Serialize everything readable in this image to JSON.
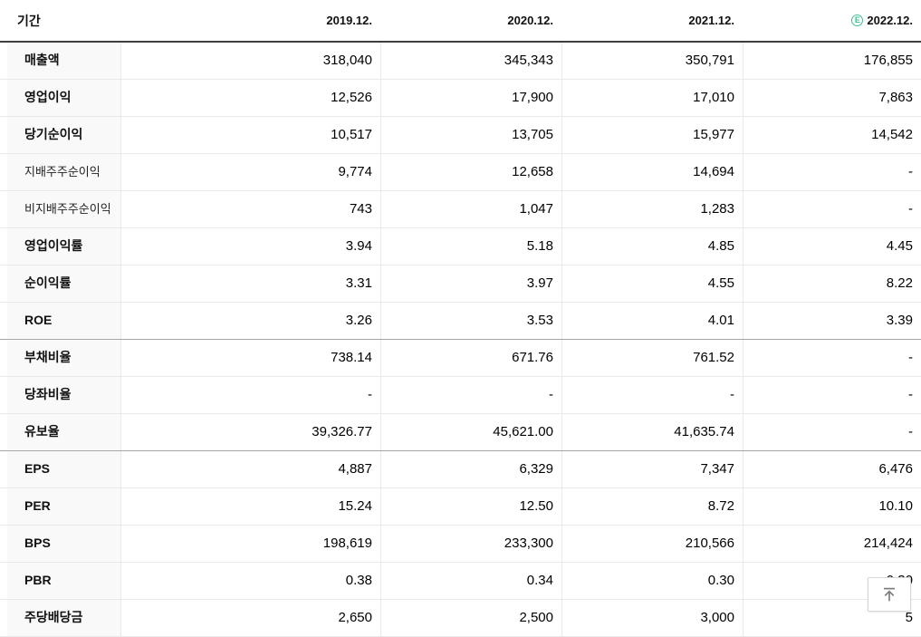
{
  "table": {
    "header": {
      "period_label": "기간",
      "columns": [
        "2019.12.",
        "2020.12.",
        "2021.12.",
        "2022.12."
      ],
      "estimate_column_index": 3,
      "estimate_letter": "E",
      "estimate_color": "#3fbf8f"
    },
    "rows": [
      {
        "label": "매출액",
        "bold": true,
        "group_end": false,
        "values": [
          "318,040",
          "345,343",
          "350,791",
          "176,855"
        ]
      },
      {
        "label": "영업이익",
        "bold": true,
        "group_end": false,
        "values": [
          "12,526",
          "17,900",
          "17,010",
          "7,863"
        ]
      },
      {
        "label": "당기순이익",
        "bold": true,
        "group_end": false,
        "values": [
          "10,517",
          "13,705",
          "15,977",
          "14,542"
        ]
      },
      {
        "label": "지배주주순이익",
        "bold": false,
        "group_end": false,
        "values": [
          "9,774",
          "12,658",
          "14,694",
          "-"
        ]
      },
      {
        "label": "비지배주주순이익",
        "bold": false,
        "group_end": false,
        "values": [
          "743",
          "1,047",
          "1,283",
          "-"
        ]
      },
      {
        "label": "영업이익률",
        "bold": true,
        "group_end": false,
        "values": [
          "3.94",
          "5.18",
          "4.85",
          "4.45"
        ]
      },
      {
        "label": "순이익률",
        "bold": true,
        "group_end": false,
        "values": [
          "3.31",
          "3.97",
          "4.55",
          "8.22"
        ]
      },
      {
        "label": "ROE",
        "bold": true,
        "group_end": true,
        "values": [
          "3.26",
          "3.53",
          "4.01",
          "3.39"
        ]
      },
      {
        "label": "부채비율",
        "bold": true,
        "group_end": false,
        "values": [
          "738.14",
          "671.76",
          "761.52",
          "-"
        ]
      },
      {
        "label": "당좌비율",
        "bold": true,
        "group_end": false,
        "values": [
          "-",
          "-",
          "-",
          "-"
        ]
      },
      {
        "label": "유보율",
        "bold": true,
        "group_end": true,
        "values": [
          "39,326.77",
          "45,621.00",
          "41,635.74",
          "-"
        ]
      },
      {
        "label": "EPS",
        "bold": true,
        "group_end": false,
        "values": [
          "4,887",
          "6,329",
          "7,347",
          "6,476"
        ]
      },
      {
        "label": "PER",
        "bold": true,
        "group_end": false,
        "values": [
          "15.24",
          "12.50",
          "8.72",
          "10.10"
        ]
      },
      {
        "label": "BPS",
        "bold": true,
        "group_end": false,
        "values": [
          "198,619",
          "233,300",
          "210,566",
          "214,424"
        ]
      },
      {
        "label": "PBR",
        "bold": true,
        "group_end": false,
        "values": [
          "0.38",
          "0.34",
          "0.30",
          "0.30"
        ]
      },
      {
        "label": "주당배당금",
        "bold": true,
        "group_end": false,
        "values": [
          "2,650",
          "2,500",
          "3,000",
          "5"
        ]
      }
    ]
  },
  "scroll_top_button": {
    "icon": "arrow-up-to-top-icon"
  }
}
